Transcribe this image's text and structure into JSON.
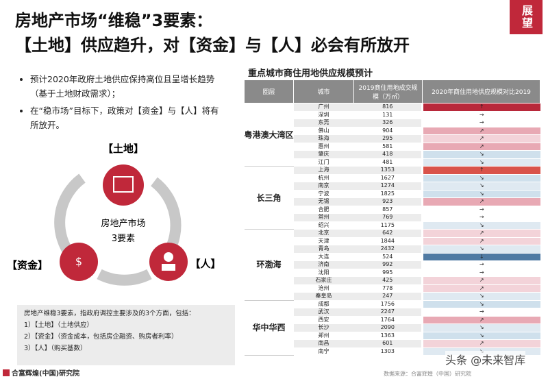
{
  "header": {
    "title_line1": "房地产市场“维稳”3要素：",
    "title_line2": "【土地】供应趋升，对【资金】与【人】必会有所放开",
    "tag": "展望"
  },
  "bullets": [
    "预计2020年政府土地供应保持高位且呈增长趋势（基于土地财政需求）；",
    "在“稳市场”目标下，政策对【资金】与【人】将有所放开。"
  ],
  "diagram": {
    "center_line1": "房地产市场",
    "center_line2": "3要素",
    "land": "【土地】",
    "capital": "【资金】",
    "people": "【人】"
  },
  "note": {
    "lead": "房地产维稳3要素，指政府调控主要涉及的3个方面，包括：",
    "items": [
      "1）【土地】（土地供应）",
      "2）【资金】（资金成本，包括房企融资、购房者利率）",
      "3）【人】（购买基数）"
    ]
  },
  "footer": {
    "org": "合富辉煌(中国)研究院",
    "source": "数据来源：合富辉煌（中国）研究院",
    "watermark": "头条 @未来智库"
  },
  "table": {
    "title": "重点城市商住用地供应规模预计",
    "headers": [
      "圈层",
      "城市",
      "2019商住用地成交规模（万㎡）",
      "2020年商住用地供应规模对比2019"
    ],
    "groups": [
      {
        "name": "粤港澳大湾区",
        "rows": [
          [
            "广州",
            "816",
            "↑",
            "#b8283a"
          ],
          [
            "深圳",
            "131",
            "→",
            "#ffffff"
          ],
          [
            "东莞",
            "326",
            "→",
            "#ffffff"
          ],
          [
            "佛山",
            "904",
            "↗",
            "#e8a9b4"
          ],
          [
            "珠海",
            "295",
            "↗",
            "#f3d3d9"
          ],
          [
            "惠州",
            "581",
            "↗",
            "#e8a9b4"
          ],
          [
            "肇庆",
            "418",
            "↘",
            "#cfe0ec"
          ],
          [
            "江门",
            "481",
            "↘",
            "#dfe9f1"
          ]
        ]
      },
      {
        "name": "长三角",
        "rows": [
          [
            "上海",
            "1353",
            "↑",
            "#d9534a"
          ],
          [
            "杭州",
            "1627",
            "↘",
            "#cfe0ec"
          ],
          [
            "南京",
            "1274",
            "↘",
            "#dfe9f1"
          ],
          [
            "宁波",
            "1825",
            "↘",
            "#cfe0ec"
          ],
          [
            "无锡",
            "923",
            "↗",
            "#e8a9b4"
          ],
          [
            "合肥",
            "857",
            "→",
            "#ffffff"
          ],
          [
            "常州",
            "769",
            "→",
            "#ffffff"
          ],
          [
            "绍兴",
            "1175",
            "↘",
            "#dfe9f1"
          ]
        ]
      },
      {
        "name": "环渤海",
        "rows": [
          [
            "北京",
            "642",
            "↗",
            "#f3d3d9"
          ],
          [
            "天津",
            "1844",
            "↗",
            "#f3d3d9"
          ],
          [
            "青岛",
            "2432",
            "↘",
            "#dfe9f1"
          ],
          [
            "大连",
            "524",
            "↓",
            "#4f7aa3"
          ],
          [
            "济南",
            "992",
            "→",
            "#ffffff"
          ],
          [
            "沈阳",
            "995",
            "→",
            "#ffffff"
          ],
          [
            "石家庄",
            "425",
            "↗",
            "#f3d3d9"
          ],
          [
            "沧州",
            "778",
            "↗",
            "#f3d3d9"
          ],
          [
            "秦皇岛",
            "247",
            "↘",
            "#dfe9f1"
          ]
        ]
      },
      {
        "name": "华中华西",
        "rows": [
          [
            "成都",
            "1756",
            "↘",
            "#cfe0ec"
          ],
          [
            "武汉",
            "2247",
            "→",
            "#ffffff"
          ],
          [
            "西安",
            "1764",
            "↗",
            "#e8a9b4"
          ],
          [
            "长沙",
            "2090",
            "↘",
            "#dfe9f1"
          ],
          [
            "郑州",
            "1363",
            "↘",
            "#cfe0ec"
          ],
          [
            "南昌",
            "601",
            "↗",
            "#f3d3d9"
          ],
          [
            "南宁",
            "1303",
            "↘",
            "#dfe9f1"
          ]
        ]
      }
    ]
  }
}
